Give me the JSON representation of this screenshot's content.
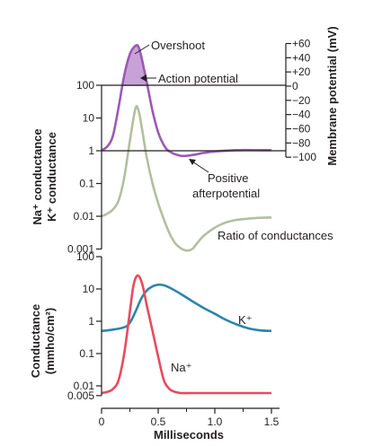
{
  "chart_data": [
    {
      "type": "line",
      "panel": "top",
      "xlim": [
        0,
        1.5
      ],
      "left_axis": {
        "label_line1": "Na⁺ conductance",
        "label_line2": "K⁺ conductance",
        "scale": "log",
        "ticks": [
          "100",
          "10",
          "1",
          "0.1",
          "0.01",
          "0.001"
        ],
        "tick_values": [
          100,
          10,
          1,
          0.1,
          0.01,
          0.001
        ],
        "range": [
          0.001,
          100
        ]
      },
      "right_axis": {
        "label": "Membrane potential (mV)",
        "ticks": [
          "+60",
          "+40",
          "+20",
          "0",
          "−20",
          "−40",
          "−60",
          "−80",
          "−100"
        ],
        "tick_values": [
          60,
          40,
          20,
          0,
          -20,
          -40,
          -60,
          -80,
          -100
        ],
        "range": [
          -100,
          60
        ]
      },
      "series": [
        {
          "name": "Action potential",
          "axis": "right",
          "color": "#9b59b6",
          "fill_above_zero": "#c8a2d6",
          "x": [
            0.0,
            0.05,
            0.1,
            0.15,
            0.2,
            0.25,
            0.3,
            0.33,
            0.36,
            0.4,
            0.45,
            0.5,
            0.55,
            0.6,
            0.7,
            0.8,
            0.9,
            1.0,
            1.2,
            1.4,
            1.5
          ],
          "y": [
            -90,
            -85,
            -70,
            -30,
            15,
            45,
            57,
            54,
            35,
            5,
            -35,
            -65,
            -83,
            -92,
            -98,
            -97,
            -94,
            -92,
            -90,
            -90,
            -90
          ]
        },
        {
          "name": "Ratio of conductances",
          "axis": "left",
          "color": "#b3bfa0",
          "x": [
            0.0,
            0.05,
            0.1,
            0.15,
            0.2,
            0.25,
            0.3,
            0.33,
            0.36,
            0.4,
            0.45,
            0.5,
            0.55,
            0.6,
            0.65,
            0.7,
            0.75,
            0.8,
            0.85,
            0.9,
            1.0,
            1.1,
            1.2,
            1.3,
            1.4,
            1.5
          ],
          "y": [
            0.01,
            0.012,
            0.016,
            0.03,
            0.15,
            2,
            20,
            15,
            4,
            0.6,
            0.1,
            0.025,
            0.008,
            0.003,
            0.0015,
            0.00105,
            0.0009,
            0.001,
            0.0016,
            0.0025,
            0.0045,
            0.0065,
            0.0078,
            0.0085,
            0.009,
            0.0092
          ]
        }
      ],
      "reference_lines": [
        {
          "axis": "left",
          "value": 100
        },
        {
          "axis": "left",
          "value": 1
        }
      ],
      "annotations": [
        "Overshoot",
        "Action potential",
        "Positive",
        "afterpotential",
        "Ratio of conductances"
      ]
    },
    {
      "type": "line",
      "panel": "bottom",
      "xlabel": "Milliseconds",
      "xlim": [
        0,
        1.5
      ],
      "xticks": [
        "0",
        "0.5",
        "1.0",
        "1.5"
      ],
      "xtick_values": [
        0,
        0.5,
        1.0,
        1.5
      ],
      "left_axis": {
        "label_line1": "Conductance",
        "label_line2": "(mmho/cm²)",
        "scale": "log",
        "ticks": [
          "100",
          "10",
          "1",
          "0.1",
          "0.01",
          "0.005"
        ],
        "tick_values": [
          100,
          10,
          1,
          0.1,
          0.01,
          0.005
        ],
        "range": [
          0.005,
          100
        ]
      },
      "series": [
        {
          "name": "K⁺",
          "color": "#2a86a8",
          "x": [
            0.0,
            0.1,
            0.2,
            0.25,
            0.3,
            0.35,
            0.4,
            0.45,
            0.5,
            0.55,
            0.6,
            0.7,
            0.8,
            0.9,
            1.0,
            1.1,
            1.2,
            1.3,
            1.4,
            1.5
          ],
          "y": [
            0.5,
            0.55,
            0.65,
            0.9,
            2.0,
            5.0,
            9.0,
            12.0,
            13.5,
            13.0,
            11.0,
            7.0,
            4.2,
            2.6,
            1.7,
            1.1,
            0.78,
            0.6,
            0.52,
            0.5
          ]
        },
        {
          "name": "Na⁺",
          "color": "#e94a5e",
          "x": [
            0.0,
            0.05,
            0.1,
            0.15,
            0.2,
            0.25,
            0.28,
            0.31,
            0.34,
            0.37,
            0.4,
            0.45,
            0.5,
            0.55,
            0.6,
            0.65,
            0.7,
            0.8,
            1.0,
            1.2,
            1.5
          ],
          "y": [
            0.006,
            0.0065,
            0.008,
            0.015,
            0.1,
            2,
            12,
            25,
            22,
            10,
            3,
            0.5,
            0.08,
            0.015,
            0.008,
            0.0065,
            0.006,
            0.006,
            0.006,
            0.006,
            0.006
          ]
        }
      ]
    }
  ]
}
